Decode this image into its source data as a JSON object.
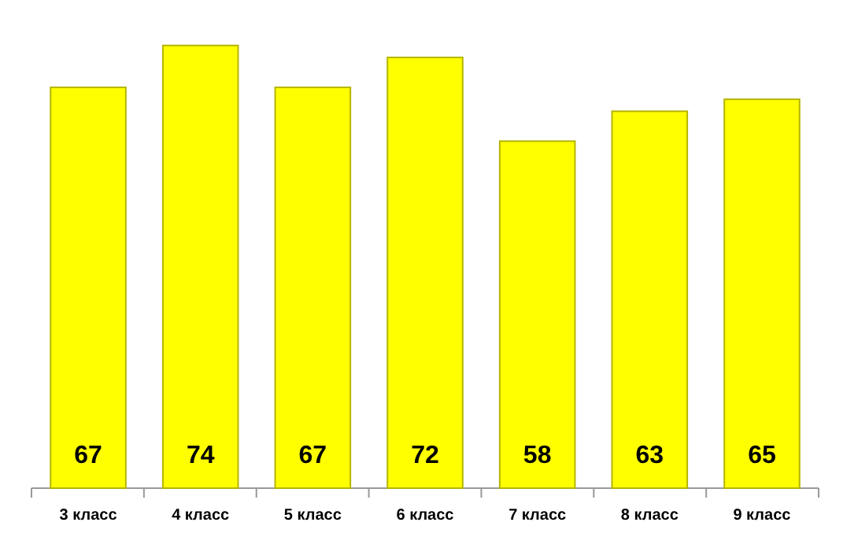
{
  "chart_data": {
    "type": "bar",
    "categories": [
      "3 класс",
      "4 класс",
      "5 класс",
      "6 класс",
      "7 класс",
      "8 класс",
      "9 класс"
    ],
    "values": [
      67,
      74,
      67,
      72,
      58,
      63,
      65
    ],
    "color": "#ffff00",
    "data_labels": true
  }
}
